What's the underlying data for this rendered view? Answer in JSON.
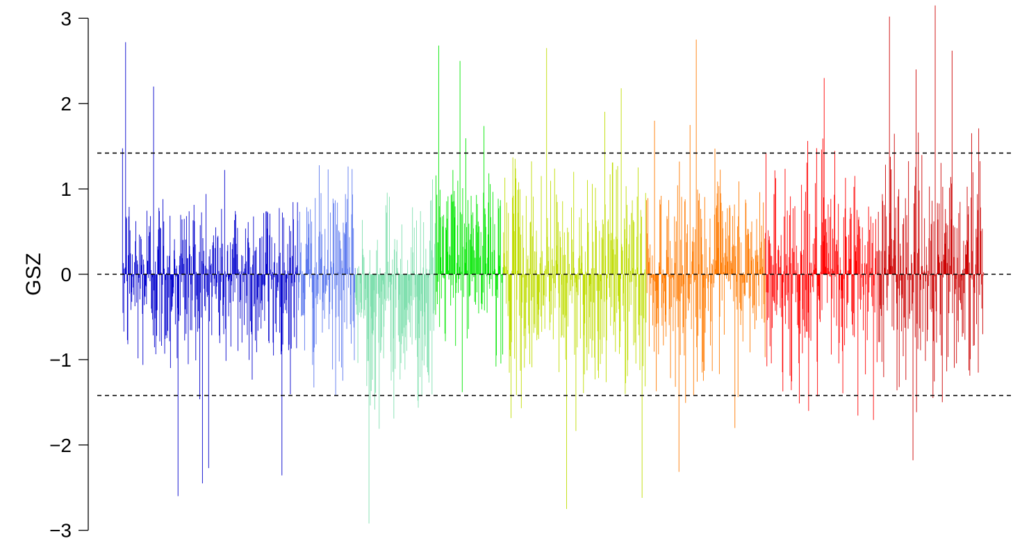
{
  "chart_data": {
    "type": "bar",
    "xlabel": "",
    "ylabel": "GSZ",
    "ylim": [
      -3,
      3.2
    ],
    "y_ticks": [
      {
        "value": 3,
        "label": "3"
      },
      {
        "value": 2,
        "label": "2"
      },
      {
        "value": 1,
        "label": "1"
      },
      {
        "value": 0,
        "label": "0"
      },
      {
        "value": -1,
        "label": "−1"
      },
      {
        "value": -2,
        "label": "−2"
      },
      {
        "value": -3,
        "label": "−3"
      }
    ],
    "reference_lines": [
      {
        "value": 1.42,
        "style": "dashed"
      },
      {
        "value": 0,
        "style": "dashed"
      },
      {
        "value": -1.42,
        "style": "dashed"
      }
    ],
    "grid": false,
    "legend": "none",
    "bar_count": 1940,
    "groups": [
      {
        "color": "#0000cc",
        "start": 0,
        "end": 395,
        "bias": -0.05,
        "spread": 0.55
      },
      {
        "color": "#5b78ee",
        "start": 395,
        "end": 525,
        "bias": -0.05,
        "spread": 0.55
      },
      {
        "color": "#7fdfae",
        "start": 525,
        "end": 705,
        "bias": -0.3,
        "spread": 0.6
      },
      {
        "color": "#00e600",
        "start": 705,
        "end": 858,
        "bias": 0.2,
        "spread": 0.55
      },
      {
        "color": "#bfdc00",
        "start": 858,
        "end": 1180,
        "bias": -0.05,
        "spread": 0.65
      },
      {
        "color": "#ff7a00",
        "start": 1180,
        "end": 1448,
        "bias": 0.0,
        "spread": 0.6
      },
      {
        "color": "#ff0000",
        "start": 1448,
        "end": 1700,
        "bias": 0.0,
        "spread": 0.65
      },
      {
        "color": "#cc0000",
        "start": 1700,
        "end": 1940,
        "bias": 0.1,
        "spread": 0.7
      }
    ],
    "notable_extremes": [
      {
        "index": 7,
        "value": 2.72
      },
      {
        "index": 70,
        "value": 2.2
      },
      {
        "index": 125,
        "value": -2.6
      },
      {
        "index": 180,
        "value": -2.45
      },
      {
        "index": 555,
        "value": -2.92
      },
      {
        "index": 712,
        "value": 2.68
      },
      {
        "index": 760,
        "value": 2.5
      },
      {
        "index": 955,
        "value": 2.65
      },
      {
        "index": 1000,
        "value": -2.75
      },
      {
        "index": 1123,
        "value": 2.18
      },
      {
        "index": 1170,
        "value": -2.62
      },
      {
        "index": 1292,
        "value": 2.75
      },
      {
        "index": 1580,
        "value": 2.3
      },
      {
        "index": 1727,
        "value": 3.02
      },
      {
        "index": 1780,
        "value": -2.18
      },
      {
        "index": 1830,
        "value": 3.15
      },
      {
        "index": 1868,
        "value": 2.62
      }
    ]
  }
}
